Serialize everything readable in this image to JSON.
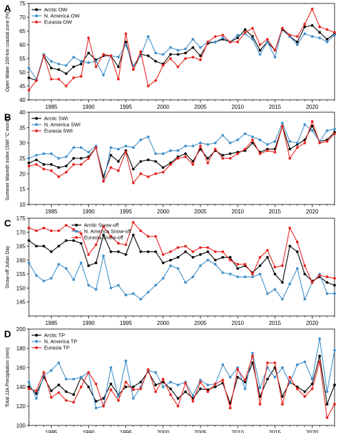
{
  "colors": {
    "arctic": "#000000",
    "na": "#3f8fc9",
    "eu": "#e8211d"
  },
  "chart_data": [
    {
      "type": "line",
      "panel": "A",
      "ylabel": "Open Water 100-km coastal zone (%)",
      "ylim": [
        40,
        75
      ],
      "yticks": [
        40,
        45,
        50,
        55,
        60,
        65,
        70,
        75
      ],
      "xlim": [
        1982,
        2023
      ],
      "xticks": [
        1985,
        1990,
        1995,
        2000,
        2005,
        2010,
        2015,
        2020
      ],
      "legend": "top-left",
      "x": [
        1982,
        1983,
        1984,
        1985,
        1986,
        1987,
        1988,
        1989,
        1990,
        1991,
        1992,
        1993,
        1994,
        1995,
        1996,
        1997,
        1998,
        1999,
        2000,
        2001,
        2002,
        2003,
        2004,
        2005,
        2006,
        2007,
        2008,
        2009,
        2010,
        2011,
        2012,
        2013,
        2014,
        2015,
        2016,
        2017,
        2018,
        2019,
        2020,
        2021,
        2022,
        2023
      ],
      "series": [
        {
          "name": "Arctic OW",
          "color_key": "arctic",
          "values": [
            48,
            47,
            56,
            51.5,
            51,
            49.5,
            52,
            53,
            57,
            54.5,
            56,
            56,
            52,
            61,
            51,
            56.5,
            56,
            54,
            53,
            56.5,
            56.5,
            57,
            59,
            56,
            60.5,
            61,
            62,
            61,
            62.5,
            65.5,
            63,
            58,
            61,
            58,
            65.5,
            63,
            61,
            66.5,
            67,
            64.5,
            62,
            64
          ]
        },
        {
          "name": "N. America OW",
          "color_key": "na",
          "values": [
            51.5,
            47.5,
            56.5,
            54,
            53,
            52.5,
            55.5,
            54,
            53.5,
            54,
            49,
            56,
            55.5,
            60,
            52.5,
            56,
            63,
            57,
            56.5,
            59,
            58,
            58.5,
            62,
            59,
            61,
            61,
            62.5,
            61,
            63.5,
            64,
            62,
            56.5,
            61,
            55.5,
            66,
            63,
            60,
            64,
            63,
            62.5,
            61,
            63.5
          ]
        },
        {
          "name": "Eurasia  OW",
          "color_key": "eu",
          "values": [
            43.5,
            47,
            56,
            47.5,
            47.5,
            45,
            48,
            48.5,
            62.5,
            52,
            56.5,
            56,
            47.5,
            64,
            51,
            57.5,
            45,
            47,
            52.5,
            55,
            52,
            55,
            55.5,
            54.5,
            61,
            63,
            63.5,
            61,
            61,
            64.5,
            66,
            60,
            62,
            58,
            66,
            63.5,
            63,
            67.5,
            73,
            66.5,
            65.5,
            64.5
          ]
        }
      ]
    },
    {
      "type": "line",
      "panel": "B",
      "ylabel": "Summer Warmth Index (SWI °C month)",
      "ylim": [
        10,
        40
      ],
      "yticks": [
        10,
        15,
        20,
        25,
        30,
        35,
        40
      ],
      "xlim": [
        1982,
        2023
      ],
      "xticks": [
        1985,
        1990,
        1995,
        2000,
        2005,
        2010,
        2015,
        2020
      ],
      "legend": "top-left",
      "x": [
        1982,
        1983,
        1984,
        1985,
        1986,
        1987,
        1988,
        1989,
        1990,
        1991,
        1992,
        1993,
        1994,
        1995,
        1996,
        1997,
        1998,
        1999,
        2000,
        2001,
        2002,
        2003,
        2004,
        2005,
        2006,
        2007,
        2008,
        2009,
        2010,
        2011,
        2012,
        2013,
        2014,
        2015,
        2016,
        2017,
        2018,
        2019,
        2020,
        2021,
        2022,
        2023
      ],
      "series": [
        {
          "name": "Arctic SWI",
          "color_key": "arctic",
          "values": [
            23.5,
            24.5,
            23,
            23,
            22,
            22.5,
            25,
            25,
            25.5,
            28.5,
            19,
            26,
            24,
            27.5,
            21.5,
            24,
            24.5,
            24,
            22,
            23.5,
            25.5,
            26.5,
            24,
            28,
            25,
            27.5,
            26,
            26.5,
            27,
            27.5,
            30,
            27,
            28,
            28,
            35.5,
            28,
            29.5,
            31,
            35.5,
            30.5,
            31,
            33.5
          ]
        },
        {
          "name": "N. America SWI",
          "color_key": "na",
          "values": [
            25,
            26,
            26.5,
            26.5,
            25,
            25.5,
            28.5,
            28.5,
            27,
            29,
            17.5,
            28.5,
            28,
            29,
            28.5,
            31,
            32,
            26.5,
            26.5,
            27.5,
            27.5,
            29,
            29,
            30,
            29.5,
            30,
            32.5,
            30,
            31,
            33,
            32,
            31,
            29.5,
            30.5,
            36.5,
            30.5,
            30,
            36,
            34,
            30.5,
            34,
            34.5
          ]
        },
        {
          "name": "Eurasia  SWI",
          "color_key": "eu",
          "values": [
            22.5,
            23,
            21.5,
            21,
            19,
            20.5,
            23,
            23,
            25,
            28.5,
            17.5,
            22,
            21,
            27,
            17,
            20,
            19,
            20,
            20.5,
            23,
            25,
            25.5,
            23,
            29,
            23.5,
            28,
            25,
            25,
            26.5,
            28,
            31,
            26.5,
            27.5,
            27,
            35.5,
            25,
            28.5,
            30,
            37,
            30,
            30.5,
            33
          ]
        }
      ]
    },
    {
      "type": "line",
      "panel": "C",
      "ylabel": "Snow-off Julian Day",
      "ylim": [
        140,
        175
      ],
      "yticks": [
        145,
        150,
        155,
        160,
        165,
        170,
        175
      ],
      "xlim": [
        1982,
        2023
      ],
      "xticks": [
        1985,
        1990,
        1995,
        2000,
        2005,
        2010,
        2015,
        2020
      ],
      "legend": "top-center",
      "x": [
        1982,
        1983,
        1984,
        1985,
        1986,
        1987,
        1988,
        1989,
        1990,
        1991,
        1992,
        1993,
        1994,
        1995,
        1996,
        1997,
        1998,
        1999,
        2000,
        2001,
        2002,
        2003,
        2004,
        2005,
        2006,
        2007,
        2008,
        2009,
        2010,
        2011,
        2012,
        2013,
        2014,
        2015,
        2016,
        2017,
        2018,
        2019,
        2020,
        2021,
        2022,
        2023
      ],
      "series": [
        {
          "name": "Arctic Snow-off",
          "color_key": "arctic",
          "values": [
            167,
            165,
            165,
            163,
            165,
            167,
            167,
            166,
            158,
            159,
            169,
            163,
            163,
            162,
            169,
            163,
            163,
            163,
            159,
            160,
            161,
            163,
            161,
            162,
            163,
            160,
            161,
            161,
            157,
            158,
            155.5,
            158,
            161,
            155,
            152,
            165,
            163,
            155,
            152.5,
            154,
            152,
            151
          ]
        },
        {
          "name": "N. America Snow-off",
          "color_key": "na",
          "values": [
            159,
            154.5,
            152.5,
            153.5,
            158.5,
            157,
            153,
            159,
            151,
            149.5,
            161.5,
            150,
            151,
            147.5,
            148,
            146,
            148.5,
            151,
            153.5,
            158,
            157,
            152,
            154,
            158,
            160,
            158.5,
            155.5,
            155,
            154,
            154,
            154,
            155,
            148,
            149.5,
            146,
            151.5,
            157,
            146,
            152,
            155,
            148,
            148
          ]
        },
        {
          "name": "Eurasia  Snow-off",
          "color_key": "eu",
          "values": [
            171.5,
            170.5,
            171.5,
            170.5,
            170.5,
            172.5,
            171,
            169.5,
            162,
            165.5,
            172,
            168.5,
            166,
            165.5,
            173.5,
            170.5,
            168.5,
            168.5,
            162,
            163,
            164.5,
            165,
            163,
            164.5,
            164.5,
            163,
            163,
            160,
            158.5,
            158.5,
            155,
            161,
            163.5,
            157.5,
            158,
            171.5,
            166.5,
            158,
            152,
            154.5,
            154,
            153.5
          ]
        }
      ]
    },
    {
      "type": "line",
      "panel": "D",
      "ylabel": "Total JJA Precipitation (mm)",
      "ylim": [
        100,
        200
      ],
      "yticks": [
        100,
        120,
        140,
        160,
        180,
        200
      ],
      "xlim": [
        1982,
        2023
      ],
      "xticks": [
        1985,
        1990,
        1995,
        2000,
        2005,
        2010,
        2015,
        2020
      ],
      "legend": "top-left",
      "x": [
        1982,
        1983,
        1984,
        1985,
        1986,
        1987,
        1988,
        1989,
        1990,
        1991,
        1992,
        1993,
        1994,
        1995,
        1996,
        1997,
        1998,
        1999,
        2000,
        2001,
        2002,
        2003,
        2004,
        2005,
        2006,
        2007,
        2008,
        2009,
        2010,
        2011,
        2012,
        2013,
        2014,
        2015,
        2016,
        2017,
        2018,
        2019,
        2020,
        2021,
        2022,
        2023
      ],
      "series": [
        {
          "name": "Arctic TP",
          "color_key": "arctic",
          "values": [
            140,
            133,
            150,
            136,
            142,
            135,
            132,
            150,
            140,
            125,
            128,
            143,
            132,
            140,
            140,
            145,
            156,
            142,
            145,
            138,
            128,
            135,
            128,
            138,
            137,
            140,
            144,
            123,
            150,
            145,
            165,
            130,
            148,
            160,
            130,
            145,
            140,
            135,
            143,
            172,
            122,
            142
          ]
        },
        {
          "name": "N. America TP",
          "color_key": "na",
          "values": [
            145,
            128,
            152,
            157,
            165,
            148,
            148,
            150,
            155,
            118,
            120,
            160,
            130,
            167,
            128,
            140,
            157,
            155,
            140,
            145,
            142,
            145,
            131,
            147,
            142,
            143,
            163,
            150,
            160,
            138,
            175,
            139,
            160,
            150,
            160,
            144,
            163,
            166,
            148,
            190,
            135,
            178
          ]
        },
        {
          "name": "Eurasia  TP",
          "color_key": "eu",
          "values": [
            138,
            136,
            155,
            129,
            134,
            126,
            124,
            140,
            155,
            143,
            120,
            137,
            126,
            145,
            137,
            138,
            158,
            135,
            148,
            132,
            120,
            144,
            125,
            145,
            135,
            143,
            147,
            118,
            158,
            147,
            172,
            122,
            165,
            165,
            122,
            150,
            138,
            130,
            138,
            166,
            108,
            122
          ]
        }
      ]
    }
  ]
}
